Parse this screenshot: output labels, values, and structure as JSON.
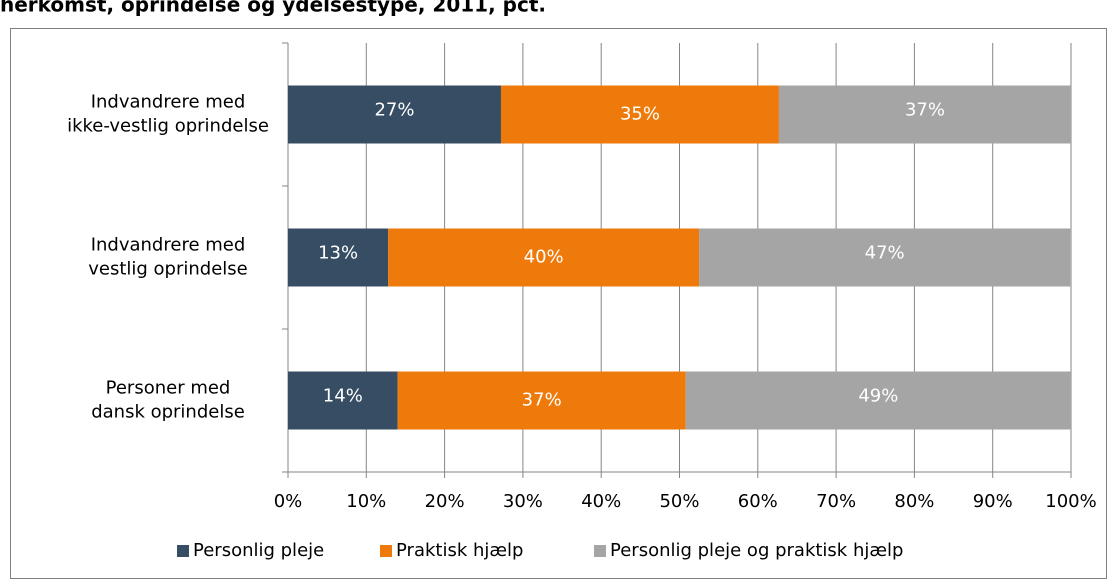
{
  "chart_data": {
    "type": "stacked-barh",
    "title": "herkomst, oprindelse og ydelsestype, 2011, pct.",
    "categories": [
      "Indvandrere med\nikke-vestlig oprindelse",
      "Indvandrere med\nvestlig oprindelse",
      "Personer med\ndansk oprindelse"
    ],
    "series": [
      {
        "name": "Personlig pleje",
        "color": "#374d63",
        "values": [
          27.2,
          12.8,
          14.0
        ],
        "value_labels": [
          "27%",
          "13%",
          "14%"
        ]
      },
      {
        "name": "Praktisk hjælp",
        "color": "#ee7a0b",
        "values": [
          35.5,
          39.7,
          36.8
        ],
        "value_labels": [
          "35%",
          "40%",
          "37%"
        ]
      },
      {
        "name": "Personlig pleje og praktisk hjælp",
        "color": "#a5a5a5",
        "values": [
          37.3,
          47.4,
          49.2
        ],
        "value_labels": [
          "37%",
          "47%",
          "49%"
        ]
      }
    ],
    "xlim": [
      0,
      100
    ],
    "xticks": [
      {
        "value": 0,
        "label": "0%"
      },
      {
        "value": 10,
        "label": "10%"
      },
      {
        "value": 20,
        "label": "20%"
      },
      {
        "value": 30,
        "label": "30%"
      },
      {
        "value": 40,
        "label": "40%"
      },
      {
        "value": 50,
        "label": "50%"
      },
      {
        "value": 60,
        "label": "60%"
      },
      {
        "value": 70,
        "label": "70%"
      },
      {
        "value": 80,
        "label": "80%"
      },
      {
        "value": 90,
        "label": "90%"
      },
      {
        "value": 100,
        "label": "100%"
      }
    ],
    "grid": true,
    "legend": "bottom"
  }
}
